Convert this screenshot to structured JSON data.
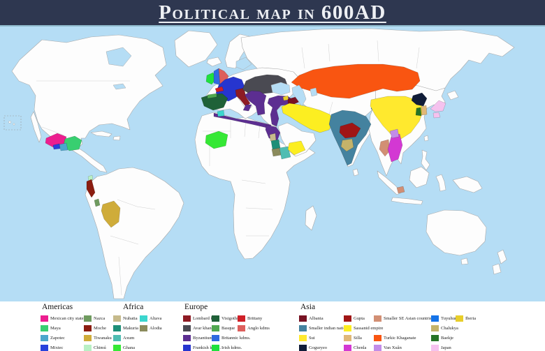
{
  "title": "Political map in 600AD",
  "colors": {
    "header_bg": "#2e3750",
    "header_text": "#eef0f4",
    "separator": "#8fb9cc",
    "sea": "#b5ddf5",
    "land": "#fdfdfd",
    "coast": "#a9a9a9",
    "border_faint": "#cfcfcf",
    "legend_bg": "#ffffff",
    "legend_text": "#1c1c1c"
  },
  "regions": {
    "mexican_city_states": {
      "label": "Mexican city states",
      "color": "#ec1e8f"
    },
    "maya": {
      "label": "Maya",
      "color": "#38cf70"
    },
    "zapotec": {
      "label": "Zapotec",
      "color": "#4ba7cc"
    },
    "mixtec": {
      "label": "Mixtec",
      "color": "#2742dc"
    },
    "nazca": {
      "label": "Nazca",
      "color": "#6f9b5f"
    },
    "moche": {
      "label": "Moche",
      "color": "#8b1d10"
    },
    "tiwanaku": {
      "label": "Tiwanaku",
      "color": "#cfac3a"
    },
    "chimu": {
      "label": "Chimú",
      "color": "#b8f0c4"
    },
    "nubatia": {
      "label": "Nubatia",
      "color": "#c6ba8b"
    },
    "makuria": {
      "label": "Makuria",
      "color": "#1d8f78"
    },
    "axum": {
      "label": "Axum",
      "color": "#4fbdb2"
    },
    "ghana": {
      "label": "Ghana",
      "color": "#35e835"
    },
    "altava": {
      "label": "Altava",
      "color": "#3bd6ce"
    },
    "alodia": {
      "label": "Alodia",
      "color": "#8b8b5c"
    },
    "lombard": {
      "label": "Lombard kdm.",
      "color": "#8e1b24"
    },
    "avar": {
      "label": "Avar khan.",
      "color": "#4a4a52"
    },
    "byzantium": {
      "label": "Byzantium",
      "color": "#5c2e91"
    },
    "frankish": {
      "label": "Frankish kdms.",
      "color": "#2635cf"
    },
    "visigoths": {
      "label": "Visigoths",
      "color": "#1f6138"
    },
    "basque": {
      "label": "Basque",
      "color": "#50a850"
    },
    "britannic": {
      "label": "Britannic kdms.",
      "color": "#2f6ae0"
    },
    "irish": {
      "label": "Irish kdms.",
      "color": "#1fe03e"
    },
    "brittany": {
      "label": "Brittany",
      "color": "#cf2027"
    },
    "anglo": {
      "label": "Anglo kdms",
      "color": "#dd5f5c"
    },
    "albania": {
      "label": "Albania",
      "color": "#771223"
    },
    "smaller_indian": {
      "label": "Smaller indian nations",
      "color": "#44829f"
    },
    "sui": {
      "label": "Sui",
      "color": "#ffe92e"
    },
    "goguryeo": {
      "label": "Goguryeo",
      "color": "#101c38"
    },
    "gupta": {
      "label": "Gupta",
      "color": "#a01515"
    },
    "sassanid": {
      "label": "Sassanid empire",
      "color": "#fcee21"
    },
    "silla": {
      "label": "Silla",
      "color": "#e0b878"
    },
    "chenla": {
      "label": "Chenla",
      "color": "#d338d3"
    },
    "smaller_se": {
      "label": "Smaller SE Asian countries",
      "color": "#d28f74"
    },
    "turkic": {
      "label": "Turkic Khaganate",
      "color": "#f95511"
    },
    "van_xuan": {
      "label": "Van Xuân",
      "color": "#c28ce8"
    },
    "tuyuhun": {
      "label": "Tuyuhun",
      "color": "#1473e8"
    },
    "chalukya": {
      "label": "Chalukya",
      "color": "#c4b36a"
    },
    "baekje": {
      "label": "Baekje",
      "color": "#267326"
    },
    "japan": {
      "label": "Japan",
      "color": "#f5c2ee"
    },
    "iberia": {
      "label": "Iberia",
      "color": "#e8ce2a"
    }
  },
  "legend": {
    "sections": [
      {
        "name": "Americas",
        "columns": [
          [
            "mexican_city_states",
            "maya",
            "zapotec",
            "mixtec"
          ],
          [
            "nazca",
            "moche",
            "tiwanaku",
            "chimu"
          ]
        ]
      },
      {
        "name": "Africa",
        "columns": [
          [
            "nubatia",
            "makuria",
            "axum",
            "ghana"
          ],
          [
            "altava",
            "alodia"
          ]
        ]
      },
      {
        "name": "Europe",
        "columns": [
          [
            "lombard",
            "avar",
            "byzantium",
            "frankish"
          ],
          [
            "visigoths",
            "basque",
            "britannic",
            "irish"
          ],
          [
            "brittany",
            "anglo"
          ]
        ]
      },
      {
        "name": "Asia",
        "columns": [
          [
            "albania",
            "smaller_indian",
            "sui",
            "goguryeo"
          ],
          [
            "gupta",
            "sassanid",
            "silla",
            "chenla"
          ],
          [
            "smaller_se",
            null,
            "turkic",
            "van_xuan"
          ],
          [
            "tuyuhun",
            "chalukya",
            "baekje",
            "japan"
          ],
          [
            "iberia"
          ]
        ]
      }
    ]
  }
}
